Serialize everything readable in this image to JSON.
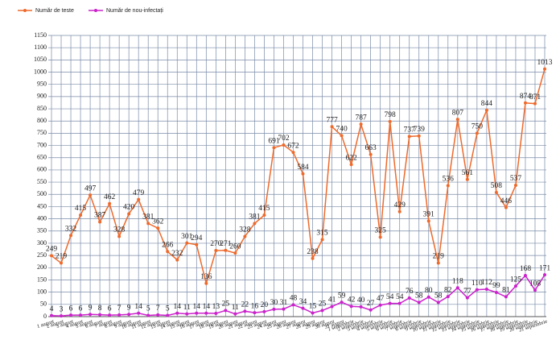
{
  "chart_data": {
    "type": "line",
    "categories": [
      "1 august",
      "2 august",
      "3 august",
      "4 august",
      "5 august",
      "6 august",
      "7 august",
      "8 august",
      "9 august",
      "10 august",
      "11 august",
      "12 august",
      "13 august",
      "14 august",
      "15 august",
      "16 august",
      "17 august",
      "18 august",
      "19 august",
      "20 august",
      "21 august",
      "22 august",
      "23 august",
      "24 august",
      "25 august",
      "26 august",
      "27 august",
      "28 august",
      "29 august",
      "30 august",
      "31 august",
      "1 septembrie",
      "2 septembrie",
      "3 septembrie",
      "4 septembrie",
      "5 septembrie",
      "6 septembrie",
      "7 septembrie",
      "8 septembrie",
      "9 septembrie",
      "10 septembrie",
      "11 septembrie",
      "12 septembrie",
      "13 septembrie",
      "14 septembrie",
      "15 septembrie",
      "16 septembrie",
      "17 septembrie",
      "18 septembrie",
      "19 septembrie",
      "20 septembrie",
      "21 septembrie"
    ],
    "series": [
      {
        "name": "Număr de teste",
        "color": "#ee6a2c",
        "values": [
          249,
          219,
          332,
          415,
          497,
          387,
          462,
          328,
          420,
          479,
          381,
          362,
          266,
          232,
          301,
          294,
          136,
          270,
          271,
          260,
          328,
          381,
          415,
          691,
          702,
          672,
          584,
          238,
          315,
          777,
          740,
          622,
          787,
          663,
          325,
          798,
          429,
          737,
          739,
          391,
          219,
          536,
          807,
          561,
          750,
          844,
          508,
          446,
          537,
          874,
          871,
          1013
        ]
      },
      {
        "name": "Număr de nou-infectați",
        "color": "#cc22cc",
        "values": [
          4,
          3,
          6,
          6,
          9,
          8,
          6,
          7,
          9,
          14,
          5,
          7,
          5,
          14,
          11,
          14,
          14,
          13,
          25,
          11,
          22,
          16,
          20,
          30,
          31,
          48,
          34,
          15,
          25,
          41,
          59,
          42,
          40,
          27,
          47,
          54,
          54,
          76,
          58,
          80,
          58,
          82,
          118,
          77,
          110,
          112,
          99,
          81,
          125,
          168,
          108,
          171
        ]
      }
    ],
    "ylim": [
      0,
      1150
    ],
    "yticks": [
      0,
      50,
      100,
      150,
      200,
      250,
      300,
      350,
      400,
      450,
      500,
      550,
      600,
      650,
      700,
      750,
      800,
      850,
      900,
      950,
      1000,
      1050,
      1100,
      1150
    ],
    "grid": true
  }
}
